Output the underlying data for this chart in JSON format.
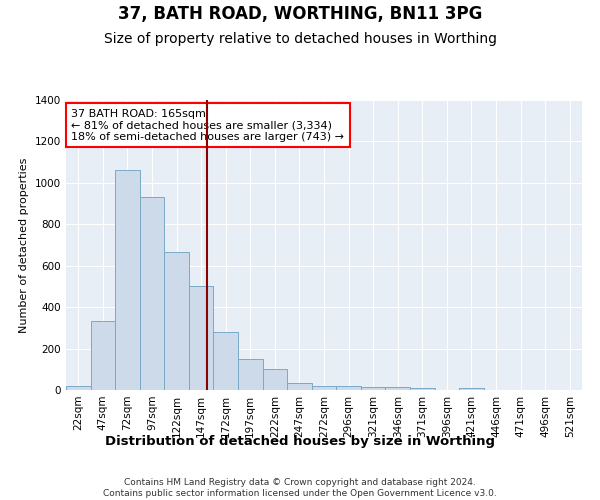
{
  "title": "37, BATH ROAD, WORTHING, BN11 3PG",
  "subtitle": "Size of property relative to detached houses in Worthing",
  "xlabel": "Distribution of detached houses by size in Worthing",
  "ylabel": "Number of detached properties",
  "categories": [
    "22sqm",
    "47sqm",
    "72sqm",
    "97sqm",
    "122sqm",
    "147sqm",
    "172sqm",
    "197sqm",
    "222sqm",
    "247sqm",
    "272sqm",
    "296sqm",
    "321sqm",
    "346sqm",
    "371sqm",
    "396sqm",
    "421sqm",
    "446sqm",
    "471sqm",
    "496sqm",
    "521sqm"
  ],
  "values": [
    20,
    335,
    1060,
    930,
    665,
    500,
    280,
    150,
    100,
    35,
    20,
    20,
    15,
    15,
    10,
    0,
    10,
    0,
    0,
    0,
    0
  ],
  "bar_color": "#ccdaea",
  "bar_edge_color": "#7aaac8",
  "vline_color": "#8b0000",
  "annotation_text": "37 BATH ROAD: 165sqm\n← 81% of detached houses are smaller (3,334)\n18% of semi-detached houses are larger (743) →",
  "annotation_box_color": "white",
  "annotation_box_edge": "red",
  "ylim": [
    0,
    1400
  ],
  "yticks": [
    0,
    200,
    400,
    600,
    800,
    1000,
    1200,
    1400
  ],
  "background_color": "#e8eef5",
  "grid_color": "white",
  "footer": "Contains HM Land Registry data © Crown copyright and database right 2024.\nContains public sector information licensed under the Open Government Licence v3.0.",
  "title_fontsize": 12,
  "subtitle_fontsize": 10,
  "xlabel_fontsize": 9.5,
  "ylabel_fontsize": 8,
  "tick_fontsize": 7.5,
  "annotation_fontsize": 8,
  "footer_fontsize": 6.5
}
